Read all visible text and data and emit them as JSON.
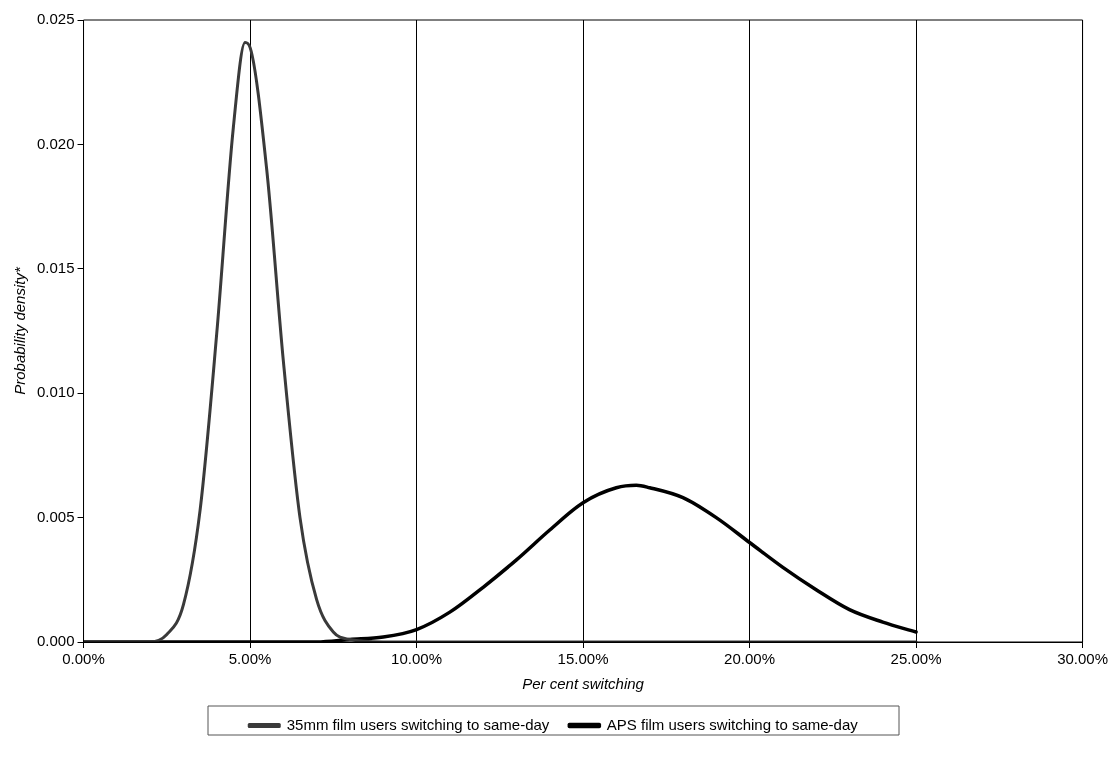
{
  "chart_data": {
    "type": "line",
    "xlabel": "Per cent switching",
    "ylabel": "Probability density*",
    "xlim": [
      0,
      30
    ],
    "xticks": [
      {
        "value": 0,
        "label": "0.00%"
      },
      {
        "value": 5,
        "label": "5.00%"
      },
      {
        "value": 10,
        "label": "10.00%"
      },
      {
        "value": 15,
        "label": "15.00%"
      },
      {
        "value": 20,
        "label": "20.00%"
      },
      {
        "value": 25,
        "label": "25.00%"
      },
      {
        "value": 30,
        "label": "30.00%"
      }
    ],
    "ylim": [
      0,
      0.025
    ],
    "yticks": [
      {
        "value": 0,
        "label": "0.000"
      },
      {
        "value": 0.005,
        "label": "0.005"
      },
      {
        "value": 0.01,
        "label": "0.010"
      },
      {
        "value": 0.015,
        "label": "0.015"
      },
      {
        "value": 0.02,
        "label": "0.020"
      },
      {
        "value": 0.025,
        "label": "0.025"
      }
    ],
    "grid": "x",
    "legend": "bottom",
    "marker": "none",
    "line_style": "solid",
    "series": [
      {
        "name": "35mm film users switching to same-day",
        "color": "#3a3a3a",
        "x": [
          0,
          2,
          2.5,
          3,
          3.5,
          4,
          4.5,
          4.85,
          5,
          5.5,
          6,
          6.5,
          7,
          7.5,
          8,
          9,
          10,
          15,
          20,
          25
        ],
        "values": [
          0,
          0,
          0.0003,
          0.0015,
          0.0053,
          0.0124,
          0.0207,
          0.0241,
          0.0239,
          0.019,
          0.0113,
          0.005,
          0.0017,
          0.0004,
          0.0001,
          0,
          0,
          0,
          0,
          0
        ]
      },
      {
        "name": "APS film users switching to same-day",
        "color": "#000000",
        "x": [
          0,
          5,
          7,
          8,
          9,
          10,
          11,
          12,
          13,
          14,
          15,
          16,
          16.6,
          17,
          18,
          19,
          20,
          21,
          22,
          23,
          24,
          25
        ],
        "values": [
          0,
          0,
          0,
          0.0001,
          0.0002,
          0.0005,
          0.0012,
          0.0022,
          0.0033,
          0.0045,
          0.0056,
          0.0062,
          0.0063,
          0.0062,
          0.0058,
          0.005,
          0.004,
          0.003,
          0.0021,
          0.0013,
          0.0008,
          0.0004
        ]
      }
    ]
  }
}
